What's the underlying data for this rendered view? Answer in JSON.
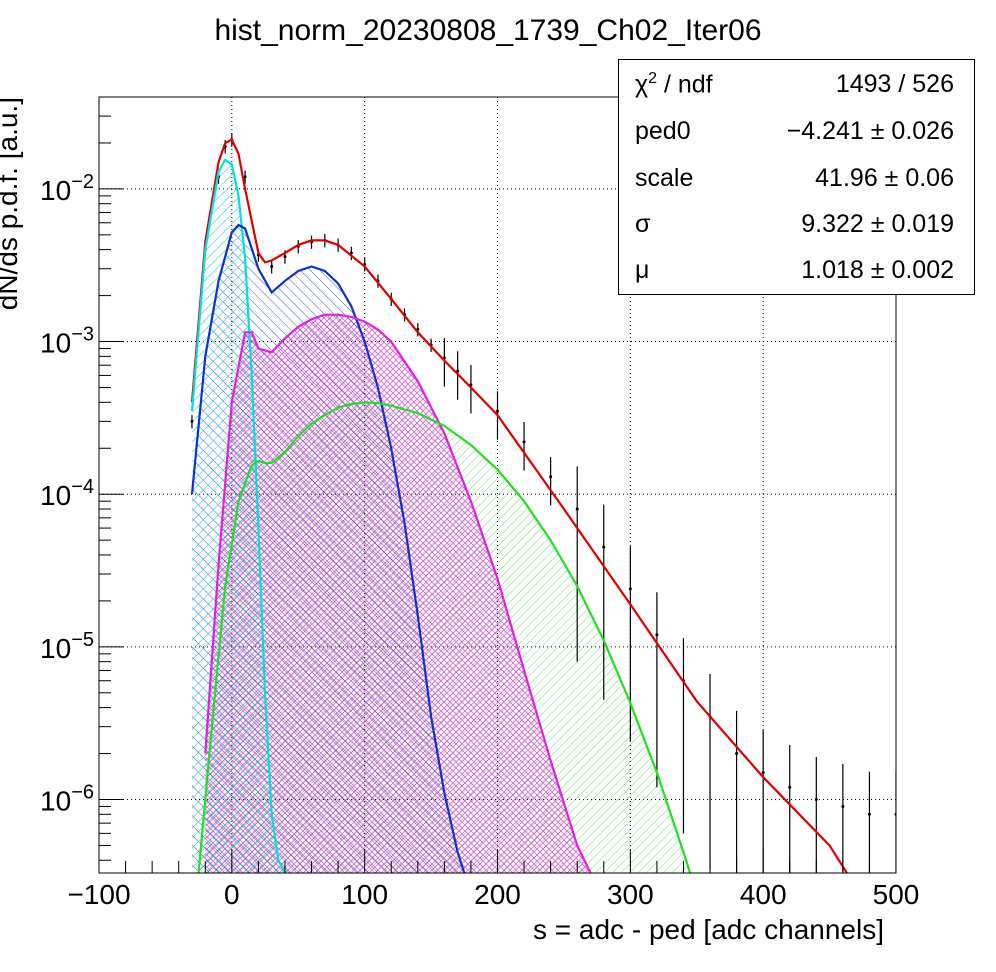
{
  "chart_data": {
    "type": "line",
    "title": "hist_norm_20230808_1739_Ch02_Iter06",
    "xlabel": "s = adc - ped [adc channels]",
    "ylabel": "dN/ds p.d.f. [a.u.]",
    "xlim": [
      -100,
      500
    ],
    "ylim": [
      3.3e-07,
      0.04
    ],
    "yscale": "log",
    "grid": true,
    "x_ticks": [
      "−100",
      "0",
      "100",
      "200",
      "300",
      "400",
      "500"
    ],
    "x_tick_values": [
      -100,
      0,
      100,
      200,
      300,
      400,
      500
    ],
    "y_ticks": [
      {
        "value": 0.01,
        "base": "10",
        "exp": "−2"
      },
      {
        "value": 0.001,
        "base": "10",
        "exp": "−3"
      },
      {
        "value": 0.0001,
        "base": "10",
        "exp": "−4"
      },
      {
        "value": 1e-05,
        "base": "10",
        "exp": "−5"
      },
      {
        "value": 1e-06,
        "base": "10",
        "exp": "−6"
      }
    ],
    "series": [
      {
        "color": "#000000",
        "style": "data-points",
        "x": [
          -40,
          -30,
          -20,
          -10,
          -5,
          0,
          10,
          20,
          30,
          40,
          50,
          60,
          70,
          80,
          90,
          100,
          110,
          120,
          130,
          140,
          150,
          160,
          170,
          180,
          200,
          220,
          240,
          260,
          280,
          300,
          320,
          340,
          360,
          380,
          400,
          420,
          440,
          460,
          480,
          500
        ],
        "y": [
          3e-07,
          0.0003,
          0.004,
          0.012,
          0.019,
          0.021,
          0.012,
          0.0037,
          0.0031,
          0.0036,
          0.0042,
          0.0045,
          0.0046,
          0.0043,
          0.0038,
          0.0032,
          0.0025,
          0.0019,
          0.0015,
          0.0012,
          0.00095,
          0.00078,
          0.00064,
          0.00052,
          0.00035,
          0.00022,
          0.00013,
          8e-05,
          4.5e-05,
          2.4e-05,
          1.2e-05,
          6e-06,
          3.5e-06,
          2e-06,
          1.5e-06,
          1.2e-06,
          1e-06,
          9e-07,
          8e-07,
          8e-07
        ]
      },
      {
        "color": "#e00000",
        "style": "fit-line",
        "x": [
          -30,
          -20,
          -10,
          -5,
          0,
          5,
          10,
          20,
          25,
          30,
          40,
          50,
          60,
          70,
          80,
          100,
          120,
          140,
          160,
          180,
          200,
          250,
          300,
          350,
          400,
          450,
          463
        ],
        "y": [
          0.0004,
          0.0045,
          0.015,
          0.02,
          0.021,
          0.017,
          0.01,
          0.0038,
          0.0033,
          0.0034,
          0.0038,
          0.0043,
          0.0046,
          0.0046,
          0.0043,
          0.0031,
          0.0019,
          0.00115,
          0.00075,
          0.0005,
          0.00033,
          8e-05,
          1.9e-05,
          4.4e-06,
          1.4e-06,
          5e-07,
          3.3e-07
        ]
      },
      {
        "color": "#00e0e0",
        "style": "component",
        "x": [
          -30,
          -20,
          -10,
          -5,
          0,
          5,
          10,
          15,
          20,
          25,
          30,
          35,
          40
        ],
        "y": [
          0.00035,
          0.004,
          0.013,
          0.0155,
          0.0145,
          0.009,
          0.0035,
          0.0006,
          6e-05,
          5e-06,
          8e-07,
          4e-07,
          3.3e-07
        ]
      },
      {
        "color": "#1030d0",
        "style": "component",
        "x": [
          -30,
          -20,
          -10,
          0,
          5,
          10,
          20,
          30,
          40,
          50,
          60,
          70,
          80,
          90,
          100,
          110,
          120,
          130,
          140,
          150,
          160,
          170,
          175
        ],
        "y": [
          0.0001,
          0.0008,
          0.0025,
          0.0052,
          0.0058,
          0.0055,
          0.003,
          0.0021,
          0.0025,
          0.0029,
          0.0031,
          0.0029,
          0.0024,
          0.0017,
          0.001,
          0.0005,
          0.0002,
          6.5e-05,
          1.6e-05,
          3.5e-06,
          1.1e-06,
          4.5e-07,
          3.3e-07
        ]
      },
      {
        "color": "#e020e0",
        "style": "component",
        "x": [
          -20,
          -10,
          0,
          10,
          15,
          20,
          30,
          40,
          50,
          60,
          70,
          80,
          90,
          100,
          110,
          120,
          140,
          160,
          180,
          200,
          220,
          240,
          260,
          270
        ],
        "y": [
          2e-06,
          3.5e-05,
          0.0004,
          0.00115,
          0.00115,
          0.0009,
          0.00085,
          0.00105,
          0.00125,
          0.0014,
          0.0015,
          0.0015,
          0.00145,
          0.00135,
          0.0012,
          0.001,
          0.00055,
          0.00025,
          9e-05,
          2.8e-05,
          7e-06,
          1.8e-06,
          5e-07,
          3.3e-07
        ]
      },
      {
        "color": "#20e020",
        "style": "component",
        "x": [
          -25,
          -15,
          -5,
          5,
          15,
          20,
          25,
          30,
          40,
          50,
          60,
          70,
          80,
          90,
          100,
          110,
          120,
          140,
          160,
          180,
          200,
          220,
          240,
          260,
          280,
          300,
          320,
          340,
          345
        ],
        "y": [
          3.3e-07,
          3e-06,
          2.5e-05,
          9e-05,
          0.000155,
          0.000165,
          0.00016,
          0.00016,
          0.00019,
          0.00024,
          0.00029,
          0.00033,
          0.00037,
          0.00039,
          0.0004,
          0.000395,
          0.00038,
          0.00034,
          0.00028,
          0.00021,
          0.000145,
          9e-05,
          5e-05,
          2.5e-05,
          1.1e-05,
          4.3e-06,
          1.5e-06,
          4.5e-07,
          3.3e-07
        ]
      }
    ]
  },
  "stats": [
    {
      "label_main": "χ",
      "label_sup": "2",
      "label_rest": " / ndf",
      "value": "1493 / 526"
    },
    {
      "label_main": "ped0",
      "label_sup": "",
      "label_rest": "",
      "value": "−4.241 ± 0.026"
    },
    {
      "label_main": "scale",
      "label_sup": "",
      "label_rest": "",
      "value": "41.96 ± 0.06"
    },
    {
      "label_main": "σ",
      "label_sup": "",
      "label_rest": "",
      "value": "9.322 ± 0.019"
    },
    {
      "label_main": "μ",
      "label_sup": "",
      "label_rest": "",
      "value": "1.018 ± 0.002"
    }
  ]
}
